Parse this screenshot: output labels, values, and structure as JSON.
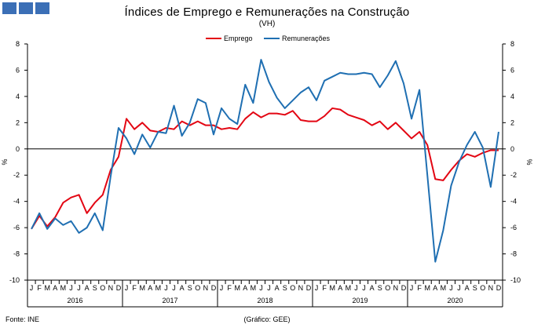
{
  "header": {
    "title": "Índices de Emprego e Remunerações na Construção",
    "subtitle": "(VH)"
  },
  "footer": {
    "source": "Fonte: INE",
    "credit": "(Gráfico: GEE)"
  },
  "colors": {
    "logo": "#3b6fb6",
    "emprego": "#e30613",
    "remuneracoes": "#1f6fb2"
  },
  "chart_data": {
    "type": "line",
    "title": "Índices de Emprego e Remunerações na Construção",
    "subtitle": "(VH)",
    "ylabel_left": "%",
    "ylabel_right": "%",
    "ylim": [
      -10,
      8
    ],
    "yticks": [
      8,
      6,
      4,
      2,
      0,
      -2,
      -4,
      -6,
      -8,
      -10
    ],
    "legend_position": "top-center",
    "grid": false,
    "month_labels": [
      "J",
      "F",
      "M",
      "A",
      "M",
      "J",
      "J",
      "A",
      "S",
      "O",
      "N",
      "D"
    ],
    "years": [
      "2016",
      "2017",
      "2018",
      "2019",
      "2020"
    ],
    "x": [
      "2016-01",
      "2016-02",
      "2016-03",
      "2016-04",
      "2016-05",
      "2016-06",
      "2016-07",
      "2016-08",
      "2016-09",
      "2016-10",
      "2016-11",
      "2016-12",
      "2017-01",
      "2017-02",
      "2017-03",
      "2017-04",
      "2017-05",
      "2017-06",
      "2017-07",
      "2017-08",
      "2017-09",
      "2017-10",
      "2017-11",
      "2017-12",
      "2018-01",
      "2018-02",
      "2018-03",
      "2018-04",
      "2018-05",
      "2018-06",
      "2018-07",
      "2018-08",
      "2018-09",
      "2018-10",
      "2018-11",
      "2018-12",
      "2019-01",
      "2019-02",
      "2019-03",
      "2019-04",
      "2019-05",
      "2019-06",
      "2019-07",
      "2019-08",
      "2019-09",
      "2019-10",
      "2019-11",
      "2019-12",
      "2020-01",
      "2020-02",
      "2020-03",
      "2020-04",
      "2020-05",
      "2020-06",
      "2020-07",
      "2020-08",
      "2020-09",
      "2020-10",
      "2020-11",
      "2020-12"
    ],
    "series": [
      {
        "name": "Emprego",
        "color": "#e30613",
        "values": [
          -6.1,
          -5.1,
          -5.9,
          -5.2,
          -4.1,
          -3.7,
          -3.5,
          -4.9,
          -4.1,
          -3.5,
          -1.6,
          -0.6,
          2.3,
          1.5,
          2.0,
          1.4,
          1.3,
          1.6,
          1.5,
          2.1,
          1.8,
          2.1,
          1.8,
          1.8,
          1.5,
          1.6,
          1.5,
          2.3,
          2.8,
          2.4,
          2.7,
          2.7,
          2.6,
          2.9,
          2.2,
          2.1,
          2.1,
          2.5,
          3.1,
          3.0,
          2.6,
          2.4,
          2.2,
          1.8,
          2.1,
          1.5,
          2.0,
          1.4,
          0.8,
          1.3,
          0.3,
          -2.3,
          -2.4,
          -1.6,
          -0.9,
          -0.4,
          -0.6,
          -0.3,
          -0.1,
          -0.1
        ]
      },
      {
        "name": "Remunerações",
        "color": "#1f6fb2",
        "values": [
          -6.1,
          -4.9,
          -6.1,
          -5.3,
          -5.8,
          -5.5,
          -6.4,
          -6.0,
          -4.9,
          -6.2,
          -2.1,
          1.6,
          0.8,
          -0.4,
          1.1,
          0.1,
          1.3,
          1.2,
          3.3,
          1.0,
          2.0,
          3.8,
          3.5,
          1.1,
          3.1,
          2.3,
          1.9,
          4.9,
          3.5,
          6.8,
          5.1,
          3.9,
          3.1,
          3.7,
          4.3,
          4.7,
          3.7,
          5.2,
          5.5,
          5.8,
          5.7,
          5.7,
          5.8,
          5.7,
          4.7,
          5.6,
          6.7,
          5.0,
          2.3,
          4.5,
          -2.0,
          -8.6,
          -6.2,
          -2.8,
          -1.0,
          0.3,
          1.3,
          0.1,
          -2.9,
          1.3
        ]
      }
    ]
  }
}
